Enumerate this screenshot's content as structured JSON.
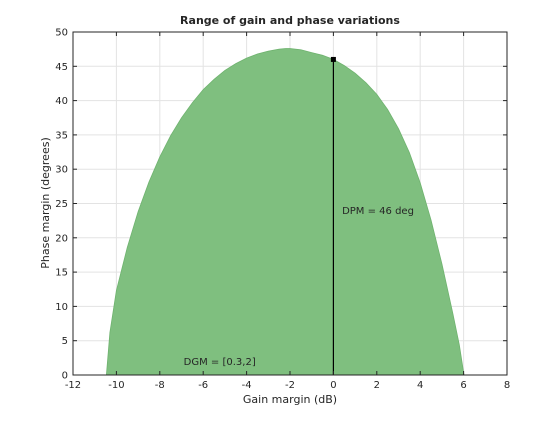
{
  "chart_data": {
    "type": "area",
    "title": "Range of gain and phase variations",
    "xlabel": "Gain margin (dB)",
    "ylabel": "Phase margin (degrees)",
    "xlim": [
      -12,
      8
    ],
    "ylim": [
      0,
      50
    ],
    "xticks": [
      -12,
      -10,
      -8,
      -6,
      -4,
      -2,
      0,
      2,
      4,
      6,
      8
    ],
    "yticks": [
      0,
      5,
      10,
      15,
      20,
      25,
      30,
      35,
      40,
      45,
      50
    ],
    "grid": true,
    "fill_color": "#7fbf7f",
    "fill_edge_color": "#6fb36f",
    "marker_color": "#000000",
    "series": [
      {
        "x": [
          -10.46,
          -10.3,
          -10.0,
          -9.5,
          -9.0,
          -8.5,
          -8.0,
          -7.5,
          -7.0,
          -6.5,
          -6.0,
          -5.5,
          -5.0,
          -4.5,
          -4.0,
          -3.5,
          -3.0,
          -2.5,
          -2.2,
          -2.0,
          -1.5,
          -1.0,
          -0.5,
          0.0,
          0.5,
          1.0,
          1.5,
          2.0,
          2.5,
          3.0,
          3.5,
          4.0,
          4.5,
          5.0,
          5.5,
          5.8,
          6.02
        ],
        "y": [
          0,
          6.2,
          12.3,
          18.6,
          23.8,
          28.1,
          31.8,
          34.9,
          37.5,
          39.7,
          41.6,
          43.1,
          44.4,
          45.4,
          46.2,
          46.8,
          47.2,
          47.5,
          47.6,
          47.6,
          47.4,
          47.0,
          46.6,
          46.0,
          45.1,
          44.0,
          42.6,
          40.9,
          38.7,
          35.9,
          32.4,
          28.0,
          22.6,
          16.2,
          9.0,
          4.4,
          0
        ]
      }
    ],
    "annotations": [
      {
        "text": "DPM = 46 deg",
        "x": 0.4,
        "y": 24
      },
      {
        "text": "DGM = [0.3,2]",
        "x": -6.9,
        "y": 2
      }
    ],
    "marker": {
      "x": 0,
      "y": 46
    }
  }
}
